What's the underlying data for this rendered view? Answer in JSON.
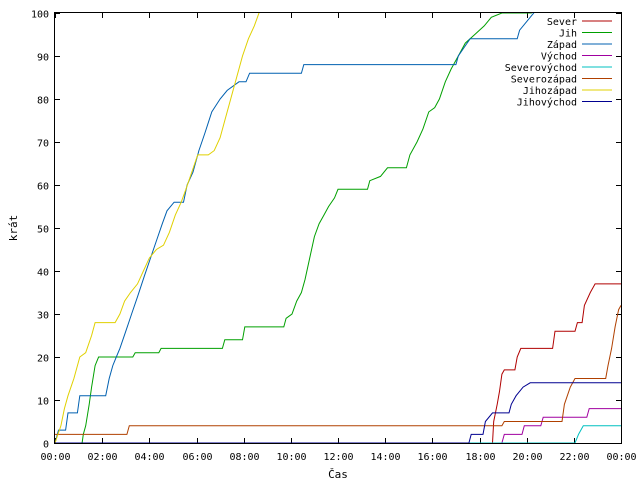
{
  "chart_data": {
    "type": "line",
    "title": "",
    "xlabel": "Čas",
    "ylabel": "krát",
    "xlim": [
      0,
      24
    ],
    "ylim": [
      0,
      100
    ],
    "x_ticks": [
      "00:00",
      "02:00",
      "04:00",
      "06:00",
      "08:00",
      "10:00",
      "12:00",
      "14:00",
      "16:00",
      "18:00",
      "20:00",
      "22:00",
      "00:00"
    ],
    "y_ticks": [
      0,
      10,
      20,
      30,
      40,
      50,
      60,
      70,
      80,
      90,
      100
    ],
    "grid": false,
    "legend_position": "top-right",
    "series": [
      {
        "name": "Sever",
        "color": "#b00000",
        "points": [
          [
            0,
            0
          ],
          [
            18.55,
            0
          ],
          [
            18.6,
            5
          ],
          [
            18.75,
            9
          ],
          [
            18.85,
            12
          ],
          [
            18.95,
            16
          ],
          [
            19.05,
            17
          ],
          [
            19.5,
            17
          ],
          [
            19.6,
            20
          ],
          [
            19.75,
            22
          ],
          [
            21.1,
            22
          ],
          [
            21.2,
            26
          ],
          [
            22.05,
            26
          ],
          [
            22.15,
            28
          ],
          [
            22.35,
            28
          ],
          [
            22.45,
            32
          ],
          [
            22.7,
            35
          ],
          [
            22.9,
            37
          ],
          [
            24,
            37
          ]
        ]
      },
      {
        "name": "Jih",
        "color": "#00a000",
        "points": [
          [
            0,
            0
          ],
          [
            1.15,
            0
          ],
          [
            1.2,
            2
          ],
          [
            1.3,
            4
          ],
          [
            1.45,
            9
          ],
          [
            1.55,
            13
          ],
          [
            1.7,
            18
          ],
          [
            1.85,
            20
          ],
          [
            3.3,
            20
          ],
          [
            3.4,
            21
          ],
          [
            4.4,
            21
          ],
          [
            4.5,
            22
          ],
          [
            7.1,
            22
          ],
          [
            7.2,
            24
          ],
          [
            7.95,
            24
          ],
          [
            8.05,
            27
          ],
          [
            9.7,
            27
          ],
          [
            9.8,
            29
          ],
          [
            10.05,
            30
          ],
          [
            10.25,
            33
          ],
          [
            10.45,
            35
          ],
          [
            10.6,
            38
          ],
          [
            10.8,
            43
          ],
          [
            11.0,
            48
          ],
          [
            11.2,
            51
          ],
          [
            11.4,
            53
          ],
          [
            11.6,
            55
          ],
          [
            11.85,
            57
          ],
          [
            12.0,
            59
          ],
          [
            13.25,
            59
          ],
          [
            13.35,
            61
          ],
          [
            13.8,
            62
          ],
          [
            14.1,
            64
          ],
          [
            14.9,
            64
          ],
          [
            15.05,
            67
          ],
          [
            15.35,
            70
          ],
          [
            15.6,
            73
          ],
          [
            15.85,
            77
          ],
          [
            16.1,
            78
          ],
          [
            16.3,
            80
          ],
          [
            16.55,
            84
          ],
          [
            16.8,
            87
          ],
          [
            17.1,
            90
          ],
          [
            17.4,
            93
          ],
          [
            17.8,
            95
          ],
          [
            18.2,
            97
          ],
          [
            18.5,
            99
          ],
          [
            18.95,
            100
          ],
          [
            20.2,
            100
          ],
          [
            20.3,
            101
          ]
        ]
      },
      {
        "name": "Západ",
        "color": "#0060b0",
        "points": [
          [
            0,
            0
          ],
          [
            0.15,
            3
          ],
          [
            0.45,
            3
          ],
          [
            0.55,
            7
          ],
          [
            0.95,
            7
          ],
          [
            1.05,
            11
          ],
          [
            2.15,
            11
          ],
          [
            2.3,
            15
          ],
          [
            2.45,
            18
          ],
          [
            2.6,
            20
          ],
          [
            2.75,
            22
          ],
          [
            3.0,
            26
          ],
          [
            3.25,
            30
          ],
          [
            3.5,
            34
          ],
          [
            3.8,
            39
          ],
          [
            4.05,
            43
          ],
          [
            4.3,
            47
          ],
          [
            4.55,
            51
          ],
          [
            4.75,
            54
          ],
          [
            5.05,
            56
          ],
          [
            5.45,
            56
          ],
          [
            5.6,
            60
          ],
          [
            5.85,
            63
          ],
          [
            6.1,
            68
          ],
          [
            6.35,
            72
          ],
          [
            6.65,
            77
          ],
          [
            7.0,
            80
          ],
          [
            7.3,
            82
          ],
          [
            7.8,
            84
          ],
          [
            8.1,
            84
          ],
          [
            8.25,
            86
          ],
          [
            10.45,
            86
          ],
          [
            10.55,
            88
          ],
          [
            17.0,
            88
          ],
          [
            17.1,
            90
          ],
          [
            17.35,
            92
          ],
          [
            17.6,
            94
          ],
          [
            19.6,
            94
          ],
          [
            19.7,
            96
          ],
          [
            20.0,
            98
          ],
          [
            20.3,
            100
          ],
          [
            20.45,
            101
          ]
        ]
      },
      {
        "name": "Východ",
        "color": "#a000a0",
        "points": [
          [
            0,
            0
          ],
          [
            18.95,
            0
          ],
          [
            19.05,
            2
          ],
          [
            19.8,
            2
          ],
          [
            19.9,
            4
          ],
          [
            20.6,
            4
          ],
          [
            20.7,
            6
          ],
          [
            22.55,
            6
          ],
          [
            22.65,
            8
          ],
          [
            24,
            8
          ]
        ]
      },
      {
        "name": "Severovýchod",
        "color": "#00c0c0",
        "points": [
          [
            0,
            0
          ],
          [
            22.05,
            0
          ],
          [
            22.2,
            2
          ],
          [
            22.4,
            4
          ],
          [
            24,
            4
          ]
        ]
      },
      {
        "name": "Severozápad",
        "color": "#b04000",
        "points": [
          [
            0,
            2
          ],
          [
            1.15,
            2
          ],
          [
            1.25,
            2
          ],
          [
            3.05,
            2
          ],
          [
            3.15,
            4
          ],
          [
            18.95,
            4
          ],
          [
            19.05,
            5
          ],
          [
            21.5,
            5
          ],
          [
            21.6,
            9
          ],
          [
            21.85,
            13
          ],
          [
            22.05,
            15
          ],
          [
            23.35,
            15
          ],
          [
            23.45,
            18
          ],
          [
            23.6,
            22
          ],
          [
            23.75,
            27
          ],
          [
            23.9,
            31
          ],
          [
            24,
            32
          ]
        ]
      },
      {
        "name": "Jihozápad",
        "color": "#e0d000",
        "points": [
          [
            0,
            0
          ],
          [
            0.25,
            4
          ],
          [
            0.4,
            8
          ],
          [
            0.55,
            11
          ],
          [
            0.8,
            15
          ],
          [
            1.05,
            20
          ],
          [
            1.3,
            21
          ],
          [
            1.55,
            25
          ],
          [
            1.7,
            28
          ],
          [
            2.55,
            28
          ],
          [
            2.75,
            30
          ],
          [
            2.95,
            33
          ],
          [
            3.2,
            35
          ],
          [
            3.5,
            37
          ],
          [
            3.75,
            40
          ],
          [
            4.0,
            43
          ],
          [
            4.3,
            45
          ],
          [
            4.6,
            46
          ],
          [
            4.85,
            49
          ],
          [
            5.1,
            53
          ],
          [
            5.35,
            56
          ],
          [
            5.55,
            59
          ],
          [
            5.8,
            63
          ],
          [
            6.05,
            67
          ],
          [
            6.5,
            67
          ],
          [
            6.75,
            68
          ],
          [
            7.0,
            71
          ],
          [
            7.2,
            75
          ],
          [
            7.45,
            80
          ],
          [
            7.7,
            85
          ],
          [
            7.95,
            90
          ],
          [
            8.2,
            94
          ],
          [
            8.45,
            97
          ],
          [
            8.65,
            100
          ],
          [
            8.7,
            101
          ]
        ]
      },
      {
        "name": "Jihovýchod",
        "color": "#000090",
        "points": [
          [
            0,
            0
          ],
          [
            17.55,
            0
          ],
          [
            17.65,
            2
          ],
          [
            18.15,
            2
          ],
          [
            18.25,
            5
          ],
          [
            18.55,
            7
          ],
          [
            19.25,
            7
          ],
          [
            19.35,
            9
          ],
          [
            19.55,
            11
          ],
          [
            19.85,
            13
          ],
          [
            20.15,
            14
          ],
          [
            24,
            14
          ]
        ]
      }
    ]
  }
}
